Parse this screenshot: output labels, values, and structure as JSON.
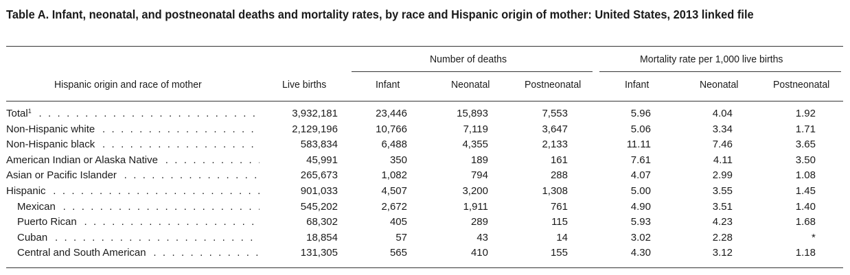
{
  "table": {
    "title": "Table A. Infant, neonatal, and postneonatal deaths and mortality rates, by race and Hispanic origin of mother: United States, 2013 linked file",
    "spanners": {
      "deaths": "Number of deaths",
      "rates": "Mortality rate per 1,000 live births"
    },
    "columns": [
      "Hispanic origin and race of mother",
      "Live births",
      "Infant",
      "Neonatal",
      "Postneonatal",
      "Infant",
      "Neonatal",
      "Postneonatal"
    ],
    "rows": [
      {
        "label": "Total",
        "footnote": "1",
        "indent": false,
        "values": [
          "3,932,181",
          "23,446",
          "15,893",
          "7,553",
          "5.96",
          "4.04",
          "1.92"
        ]
      },
      {
        "label": "Non-Hispanic white",
        "footnote": "",
        "indent": false,
        "values": [
          "2,129,196",
          "10,766",
          "7,119",
          "3,647",
          "5.06",
          "3.34",
          "1.71"
        ]
      },
      {
        "label": "Non-Hispanic black",
        "footnote": "",
        "indent": false,
        "values": [
          "583,834",
          "6,488",
          "4,355",
          "2,133",
          "11.11",
          "7.46",
          "3.65"
        ]
      },
      {
        "label": "American Indian or Alaska Native",
        "footnote": "",
        "indent": false,
        "values": [
          "45,991",
          "350",
          "189",
          "161",
          "7.61",
          "4.11",
          "3.50"
        ]
      },
      {
        "label": "Asian or Pacific Islander",
        "footnote": "",
        "indent": false,
        "values": [
          "265,673",
          "1,082",
          "794",
          "288",
          "4.07",
          "2.99",
          "1.08"
        ]
      },
      {
        "label": "Hispanic",
        "footnote": "",
        "indent": false,
        "values": [
          "901,033",
          "4,507",
          "3,200",
          "1,308",
          "5.00",
          "3.55",
          "1.45"
        ]
      },
      {
        "label": "Mexican",
        "footnote": "",
        "indent": true,
        "values": [
          "545,202",
          "2,672",
          "1,911",
          "761",
          "4.90",
          "3.51",
          "1.40"
        ]
      },
      {
        "label": "Puerto Rican",
        "footnote": "",
        "indent": true,
        "values": [
          "68,302",
          "405",
          "289",
          "115",
          "5.93",
          "4.23",
          "1.68"
        ]
      },
      {
        "label": "Cuban",
        "footnote": "",
        "indent": true,
        "values": [
          "18,854",
          "57",
          "43",
          "14",
          "3.02",
          "2.28",
          "*"
        ]
      },
      {
        "label": "Central and South American",
        "footnote": "",
        "indent": true,
        "values": [
          "131,305",
          "565",
          "410",
          "155",
          "4.30",
          "3.12",
          "1.18"
        ]
      }
    ]
  }
}
